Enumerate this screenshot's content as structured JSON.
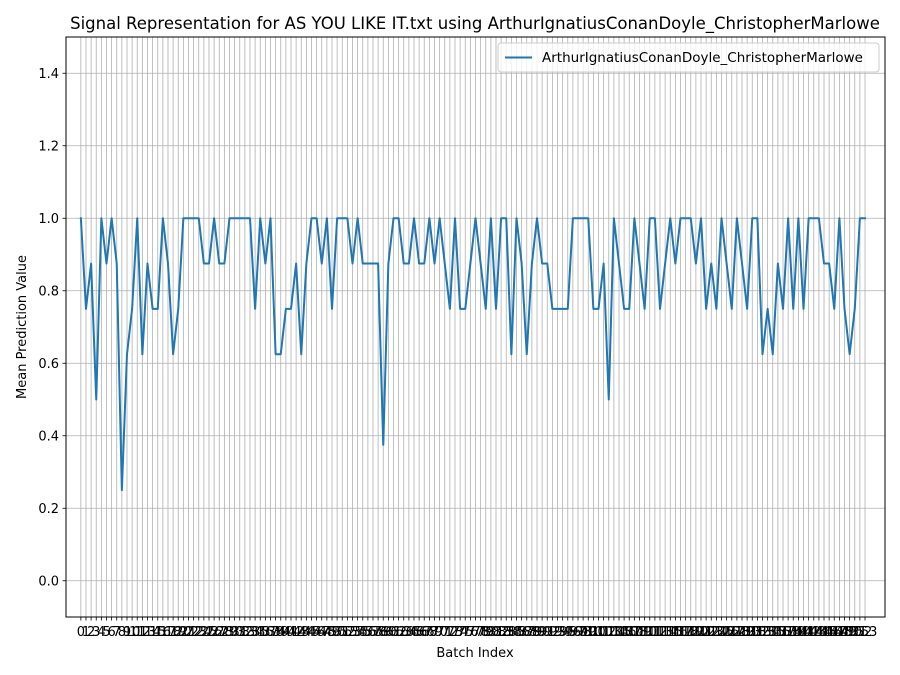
{
  "chart_data": {
    "type": "line",
    "title": "Signal Representation for AS YOU LIKE IT.txt using ArthurIgnatiusConanDoyle_ChristopherMarlowe",
    "xlabel": "Batch Index",
    "ylabel": "Mean Prediction Value",
    "ylim": [
      -0.1,
      1.5
    ],
    "xlim": [
      -2.9,
      156.9
    ],
    "yticks": [
      0.0,
      0.2,
      0.4,
      0.6,
      0.8,
      1.0,
      1.2,
      1.4
    ],
    "ytick_labels": [
      "0.0",
      "0.2",
      "0.4",
      "0.6",
      "0.8",
      "1.0",
      "1.2",
      "1.4"
    ],
    "grid": true,
    "legend_position": "top-right",
    "x": [
      0,
      1,
      2,
      3,
      4,
      5,
      6,
      7,
      8,
      9,
      10,
      11,
      12,
      13,
      14,
      15,
      16,
      17,
      18,
      19,
      20,
      21,
      22,
      23,
      24,
      25,
      26,
      27,
      28,
      29,
      30,
      31,
      32,
      33,
      34,
      35,
      36,
      37,
      38,
      39,
      40,
      41,
      42,
      43,
      44,
      45,
      46,
      47,
      48,
      49,
      50,
      51,
      52,
      53,
      54,
      55,
      56,
      57,
      58,
      59,
      60,
      61,
      62,
      63,
      64,
      65,
      66,
      67,
      68,
      69,
      70,
      71,
      72,
      73,
      74,
      75,
      76,
      77,
      78,
      79,
      80,
      81,
      82,
      83,
      84,
      85,
      86,
      87,
      88,
      89,
      90,
      91,
      92,
      93,
      94,
      95,
      96,
      97,
      98,
      99,
      100,
      101,
      102,
      103,
      104,
      105,
      106,
      107,
      108,
      109,
      110,
      111,
      112,
      113,
      114,
      115,
      116,
      117,
      118,
      119,
      120,
      121,
      122,
      123,
      124,
      125,
      126,
      127,
      128,
      129,
      130,
      131,
      132,
      133,
      134,
      135,
      136,
      137,
      138,
      139,
      140,
      141,
      142,
      143,
      144,
      145,
      146,
      147,
      148,
      149,
      150,
      151,
      152,
      153
    ],
    "series": [
      {
        "name": "ArthurIgnatiusConanDoyle_ChristopherMarlowe",
        "color": "#1f77b4",
        "values": [
          1.0,
          0.75,
          0.875,
          0.5,
          1.0,
          0.875,
          1.0,
          0.875,
          0.25,
          0.625,
          0.75,
          1.0,
          0.625,
          0.875,
          0.75,
          0.75,
          1.0,
          0.875,
          0.625,
          0.75,
          1.0,
          1.0,
          1.0,
          1.0,
          0.875,
          0.875,
          1.0,
          0.875,
          0.875,
          1.0,
          1.0,
          1.0,
          1.0,
          1.0,
          0.75,
          1.0,
          0.875,
          1.0,
          0.625,
          0.625,
          0.75,
          0.75,
          0.875,
          0.625,
          0.875,
          1.0,
          1.0,
          0.875,
          1.0,
          0.75,
          1.0,
          1.0,
          1.0,
          0.875,
          1.0,
          0.875,
          0.875,
          0.875,
          0.875,
          0.375,
          0.875,
          1.0,
          1.0,
          0.875,
          0.875,
          1.0,
          0.875,
          0.875,
          1.0,
          0.875,
          1.0,
          0.875,
          0.75,
          1.0,
          0.75,
          0.75,
          0.875,
          1.0,
          0.875,
          0.75,
          1.0,
          0.75,
          1.0,
          1.0,
          0.625,
          1.0,
          0.875,
          0.625,
          0.875,
          1.0,
          0.875,
          0.875,
          0.75,
          0.75,
          0.75,
          0.75,
          1.0,
          1.0,
          1.0,
          1.0,
          0.75,
          0.75,
          0.875,
          0.5,
          1.0,
          0.875,
          0.75,
          0.75,
          1.0,
          0.875,
          0.75,
          1.0,
          1.0,
          0.75,
          0.875,
          1.0,
          0.875,
          1.0,
          1.0,
          1.0,
          0.875,
          1.0,
          0.75,
          0.875,
          0.75,
          1.0,
          0.875,
          0.75,
          1.0,
          0.875,
          0.75,
          1.0,
          1.0,
          0.625,
          0.75,
          0.625,
          0.875,
          0.75,
          1.0,
          0.75,
          1.0,
          0.75,
          1.0,
          1.0,
          1.0,
          0.875,
          0.875,
          0.75,
          1.0,
          0.75,
          0.625,
          0.75,
          1.0,
          1.0
        ]
      }
    ]
  }
}
